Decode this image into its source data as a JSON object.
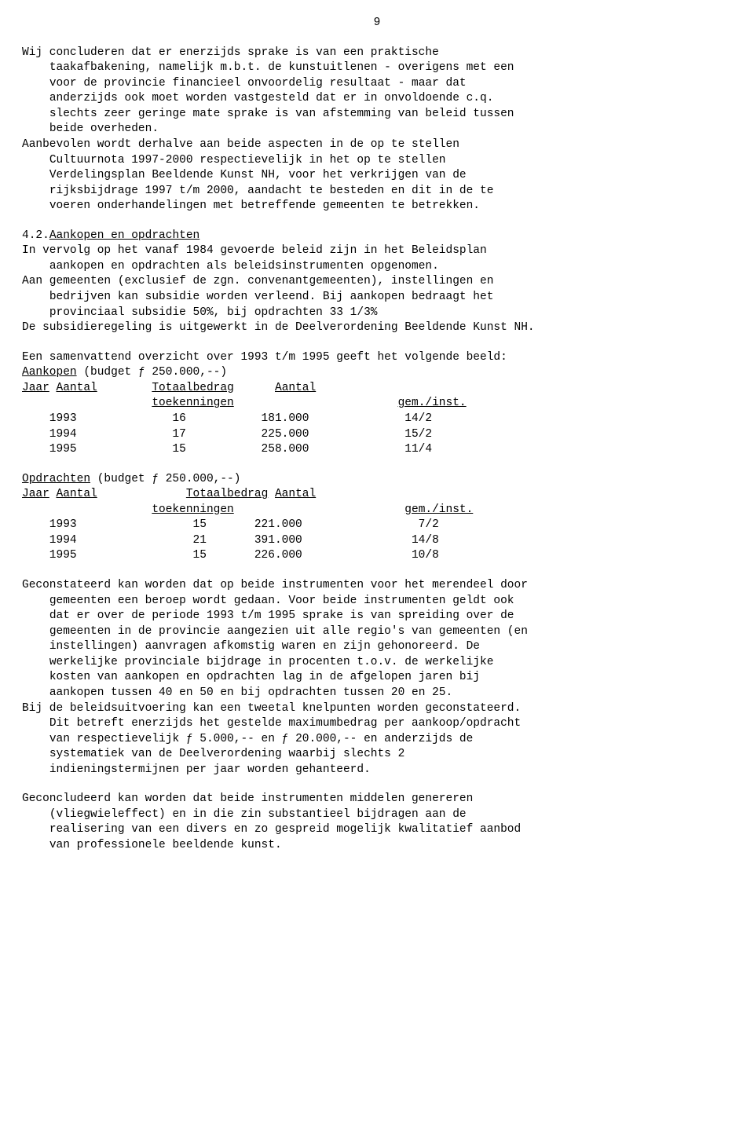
{
  "pageNumber": "9",
  "para1": "Wij concluderen dat er enerzijds sprake is van een praktische\n    taakafbakening, namelijk m.b.t. de kunstuitlenen - overigens met een\n    voor de provincie financieel onvoordelig resultaat - maar dat\n    anderzijds ook moet worden vastgesteld dat er in onvoldoende c.q.\n    slechts zeer geringe mate sprake is van afstemming van beleid tussen\n    beide overheden.\nAanbevolen wordt derhalve aan beide aspecten in de op te stellen\n    Cultuurnota 1997-2000 respectievelijk in het op te stellen\n    Verdelingsplan Beeldende Kunst NH, voor het verkrijgen van de\n    rijksbijdrage 1997 t/m 2000, aandacht te besteden en dit in de te\n    voeren onderhandelingen met betreffende gemeenten te betrekken.",
  "section42_num": "4.2.",
  "section42_title": "Aankopen en opdrachten",
  "para2": "In vervolg op het vanaf 1984 gevoerde beleid zijn in het Beleidsplan\n    aankopen en opdrachten als beleidsinstrumenten opgenomen.\nAan gemeenten (exclusief de zgn. convenantgemeenten), instellingen en\n    bedrijven kan subsidie worden verleend. Bij aankopen bedraagt het\n    provinciaal subsidie 50%, bij opdrachten 33 1/3%\nDe subsidieregeling is uitgewerkt in de Deelverordening Beeldende Kunst NH.",
  "overview_intro": "Een samenvattend overzicht over 1993 t/m 1995 geeft het volgende beeld:",
  "aankopen_label": "Aankopen",
  "aankopen_budget": " (budget ƒ 250.000,--)",
  "opdrachten_label": "Opdrachten",
  "opdrachten_budget": " (budget ƒ 250.000,--)",
  "hdr_jaar": "Jaar",
  "hdr_aantal": "Aantal",
  "hdr_totaal": "Totaalbedrag",
  "hdr_aantal2": "Aantal",
  "hdr_toek": "toekenningen",
  "hdr_geminst": "gem./inst.",
  "aankopen_rows": [
    {
      "jaar": "1993",
      "aantal": "16",
      "bedrag": "181.000",
      "gem": "14/2"
    },
    {
      "jaar": "1994",
      "aantal": "17",
      "bedrag": "225.000",
      "gem": "15/2"
    },
    {
      "jaar": "1995",
      "aantal": "15",
      "bedrag": "258.000",
      "gem": "11/4"
    }
  ],
  "opdrachten_rows": [
    {
      "jaar": "1993",
      "aantal": "15",
      "bedrag": "221.000",
      "gem": "7/2"
    },
    {
      "jaar": "1994",
      "aantal": "21",
      "bedrag": "391.000",
      "gem": "14/8"
    },
    {
      "jaar": "1995",
      "aantal": "15",
      "bedrag": "226.000",
      "gem": "10/8"
    }
  ],
  "para4": "Geconstateerd kan worden dat op beide instrumenten voor het merendeel door\n    gemeenten een beroep wordt gedaan. Voor beide instrumenten geldt ook\n    dat er over de periode 1993 t/m 1995 sprake is van spreiding over de\n    gemeenten in de provincie aangezien uit alle regio's van gemeenten (en\n    instellingen) aanvragen afkomstig waren en zijn gehonoreerd. De\n    werkelijke provinciale bijdrage in procenten t.o.v. de werkelijke\n    kosten van aankopen en opdrachten lag in de afgelopen jaren bij\n    aankopen tussen 40 en 50 en bij opdrachten tussen 20 en 25.\nBij de beleidsuitvoering kan een tweetal knelpunten worden geconstateerd.\n    Dit betreft enerzijds het gestelde maximumbedrag per aankoop/opdracht\n    van respectievelijk ƒ 5.000,-- en ƒ 20.000,-- en anderzijds de\n    systematiek van de Deelverordening waarbij slechts 2\n    indieningstermijnen per jaar worden gehanteerd.",
  "para5": "Geconcludeerd kan worden dat beide instrumenten middelen genereren\n    (vliegwieleffect) en in die zin substantieel bijdragen aan de\n    realisering van een divers en zo gespreid mogelijk kwalitatief aanbod\n    van professionele beeldende kunst.",
  "colors": {
    "text": "#000000",
    "background": "#ffffff"
  },
  "typography": {
    "font_family": "Courier New",
    "font_size_pt": 11
  },
  "aankopen_columns": {
    "jaar_start": 4,
    "aantal_end": 24,
    "bedrag_end": 42,
    "gem_end": 60
  },
  "opdrachten_columns": {
    "jaar_start": 4,
    "aantal_end": 27,
    "bedrag_end": 41,
    "gem_end": 61
  }
}
